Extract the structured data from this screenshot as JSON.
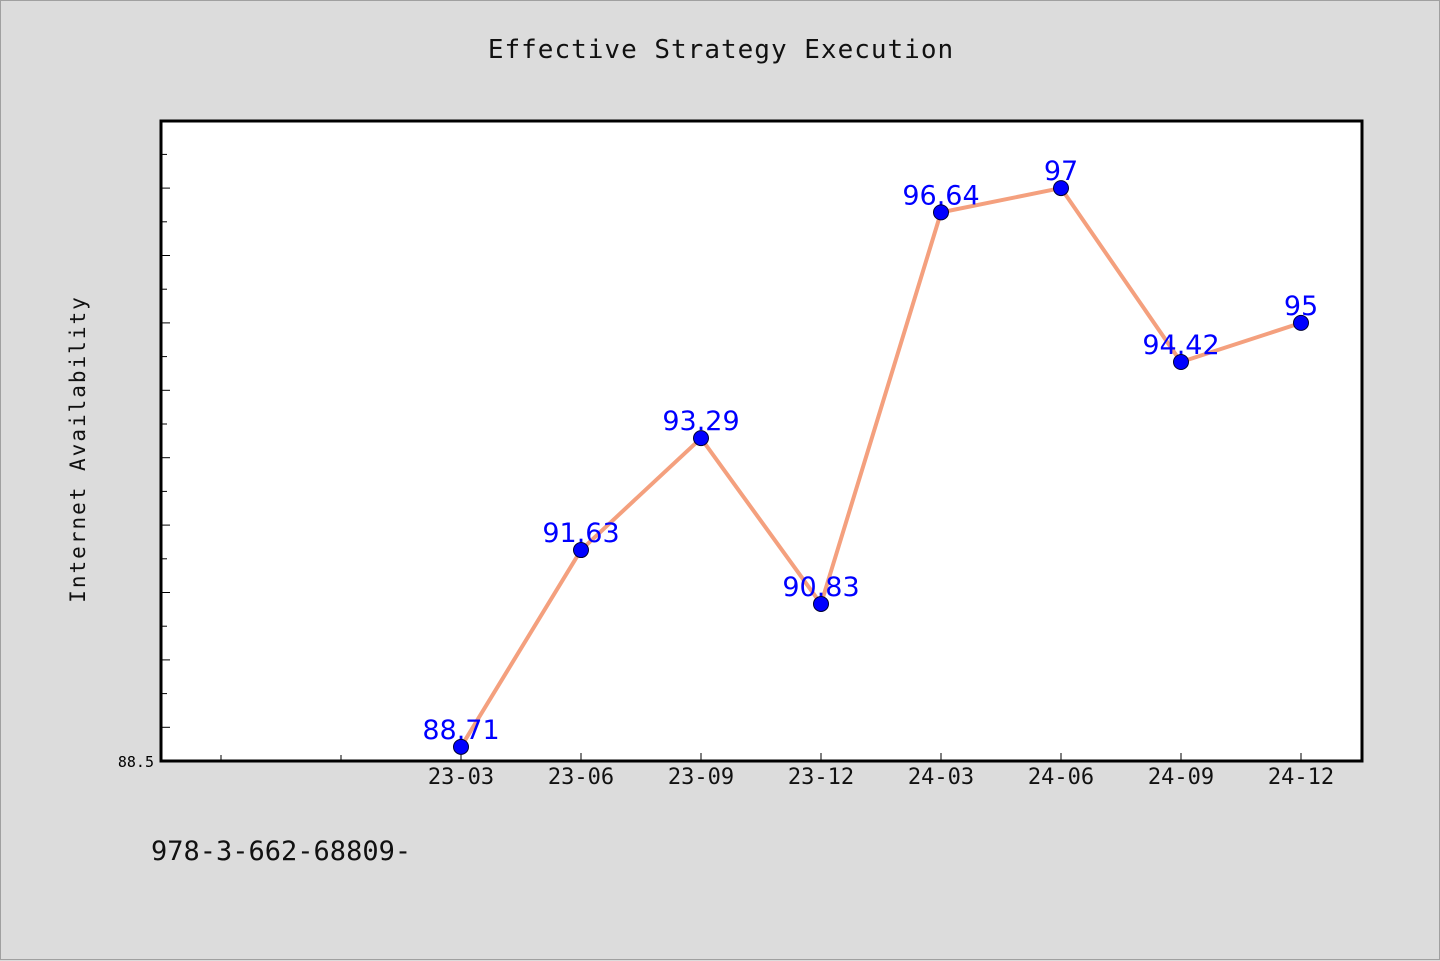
{
  "chart_data": {
    "type": "line",
    "title": "Effective Strategy Execution",
    "xlabel": "",
    "ylabel": "Internet Availability",
    "categories": [
      "23-03",
      "23-06",
      "23-09",
      "23-12",
      "24-03",
      "24-06",
      "24-09",
      "24-12"
    ],
    "series": [
      {
        "values": [
          88.71,
          91.63,
          93.29,
          90.83,
          96.64,
          97,
          94.42,
          95
        ],
        "data_labels": [
          "88.71",
          "91.63",
          "93.29",
          "90.83",
          "96.64",
          "97",
          "94.42",
          "95"
        ],
        "line_color": "#f4a07e",
        "marker_color": "#0000ff"
      }
    ],
    "y_tick_labels": [
      "88.5"
    ],
    "ylim": [
      88.5,
      98
    ],
    "grid": false,
    "legend": "none"
  },
  "footer": {
    "code": "978-3-662-68809-"
  }
}
